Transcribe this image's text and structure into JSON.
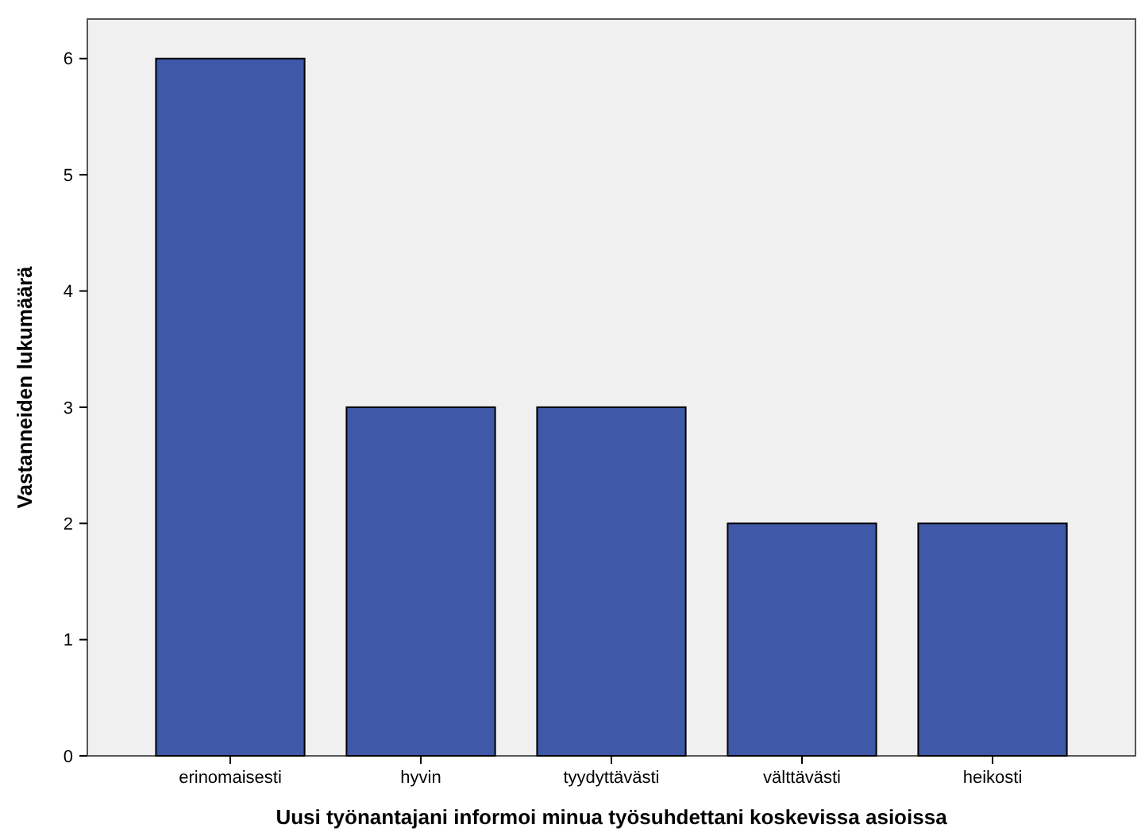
{
  "chart_data": {
    "type": "bar",
    "xlabel": "Uusi työnantajani informoi minua työsuhdettani koskevissa asioissa",
    "ylabel": "Vastanneiden lukumäärä",
    "categories": [
      "erinomaisesti",
      "hyvin",
      "tyydyttävästi",
      "välttävästi",
      "heikosti"
    ],
    "values": [
      6,
      3,
      3,
      2,
      2
    ],
    "color": "#3f58a8",
    "ylim": [
      0,
      6.34
    ],
    "yticks": [
      0,
      1,
      2,
      3,
      4,
      5,
      6
    ],
    "grid": false
  }
}
